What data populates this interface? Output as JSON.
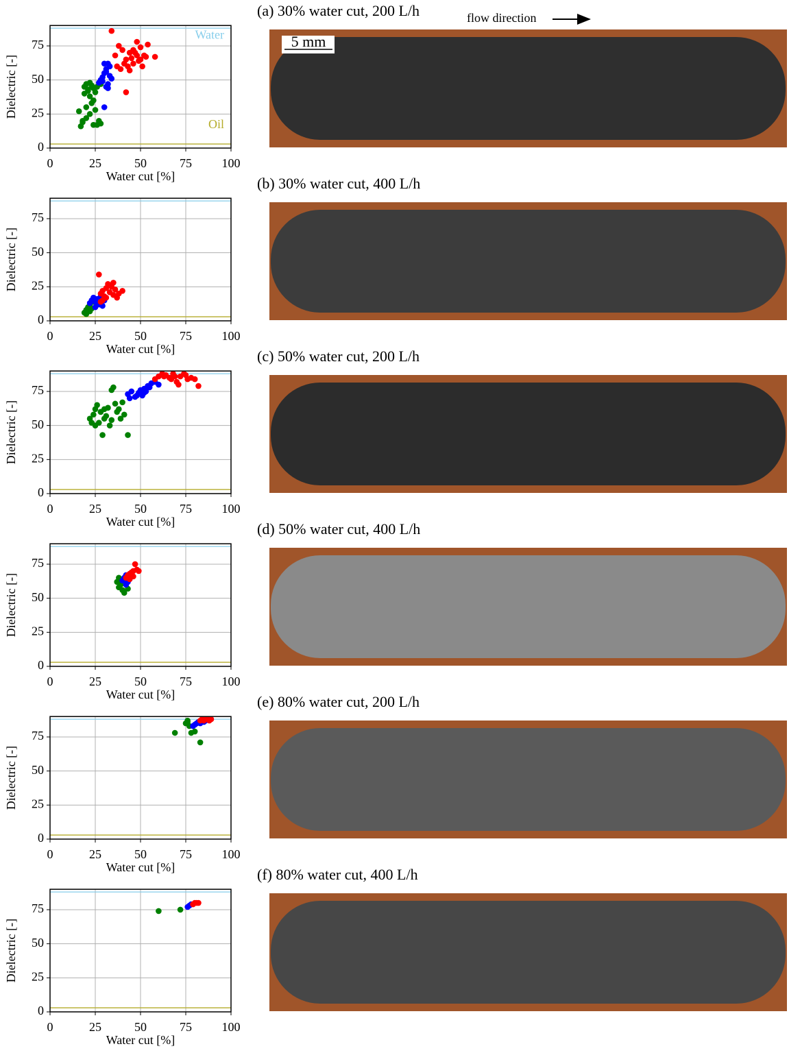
{
  "chart_data": [
    {
      "type": "scatter",
      "xlabel": "Water cut [%]",
      "ylabel": "Dielectric [-]",
      "xlim": [
        0,
        100
      ],
      "ylim": [
        0,
        90
      ],
      "xticks": [
        0,
        25,
        50,
        75,
        100
      ],
      "yticks": [
        0,
        25,
        50,
        75
      ],
      "grid": true,
      "reference_lines": [
        {
          "value": 88,
          "color": "#87ceeb",
          "label": "Water"
        },
        {
          "value": 3,
          "color": "#b5ac2a",
          "label": "Oil"
        }
      ],
      "series": [
        {
          "color": "#008000",
          "x": [
            16,
            17,
            18,
            19,
            20,
            21,
            22,
            23,
            24,
            25,
            26,
            27,
            28,
            20,
            22,
            24,
            19,
            21,
            23,
            25,
            18,
            22,
            26,
            28,
            20,
            24
          ],
          "values": [
            27,
            16,
            20,
            45,
            47,
            43,
            48,
            46,
            44,
            41,
            45,
            20,
            18,
            22,
            38,
            35,
            40,
            42,
            33,
            28,
            19,
            25,
            17,
            47,
            30,
            17
          ]
        },
        {
          "color": "#0000ff",
          "x": [
            27,
            28,
            29,
            30,
            31,
            32,
            33,
            30,
            31,
            32,
            33,
            29,
            31,
            34,
            32,
            30
          ],
          "values": [
            48,
            50,
            52,
            55,
            58,
            62,
            60,
            30,
            45,
            47,
            53,
            49,
            56,
            51,
            44,
            62
          ]
        },
        {
          "color": "#ff0000",
          "x": [
            34,
            36,
            38,
            40,
            42,
            44,
            46,
            48,
            50,
            52,
            54,
            58,
            39,
            41,
            43,
            45,
            47,
            49,
            51,
            42,
            44,
            46,
            48,
            50,
            37,
            53
          ],
          "values": [
            86,
            68,
            75,
            72,
            65,
            70,
            62,
            78,
            74,
            68,
            76,
            67,
            58,
            62,
            60,
            66,
            70,
            64,
            60,
            41,
            57,
            72,
            68,
            65,
            60,
            67
          ]
        }
      ]
    },
    {
      "type": "scatter",
      "xlabel": "Water cut [%]",
      "ylabel": "Dielectric [-]",
      "xlim": [
        0,
        100
      ],
      "ylim": [
        0,
        90
      ],
      "xticks": [
        0,
        25,
        50,
        75,
        100
      ],
      "yticks": [
        0,
        25,
        50,
        75
      ],
      "grid": true,
      "reference_lines": [
        {
          "value": 88,
          "color": "#87ceeb"
        },
        {
          "value": 3,
          "color": "#b5ac2a"
        }
      ],
      "series": [
        {
          "color": "#008000",
          "x": [
            19,
            20,
            21,
            22,
            23,
            24,
            20,
            22
          ],
          "values": [
            6,
            8,
            10,
            12,
            9,
            14,
            5,
            7
          ]
        },
        {
          "color": "#0000ff",
          "x": [
            22,
            23,
            24,
            25,
            26,
            27,
            28,
            29,
            30,
            25
          ],
          "values": [
            13,
            15,
            17,
            14,
            16,
            12,
            18,
            11,
            15,
            10
          ]
        },
        {
          "color": "#ff0000",
          "x": [
            27,
            28,
            29,
            30,
            31,
            32,
            33,
            34,
            35,
            36,
            38,
            40,
            29,
            31,
            33,
            35,
            37,
            28
          ],
          "values": [
            34,
            20,
            22,
            18,
            24,
            27,
            21,
            25,
            19,
            23,
            20,
            22,
            15,
            17,
            26,
            28,
            17,
            14
          ]
        }
      ]
    },
    {
      "type": "scatter",
      "xlabel": "Water cut [%]",
      "ylabel": "Dielectric [-]",
      "xlim": [
        0,
        100
      ],
      "ylim": [
        0,
        90
      ],
      "xticks": [
        0,
        25,
        50,
        75,
        100
      ],
      "yticks": [
        0,
        25,
        50,
        75
      ],
      "grid": true,
      "reference_lines": [
        {
          "value": 88,
          "color": "#87ceeb"
        },
        {
          "value": 3,
          "color": "#b5ac2a"
        }
      ],
      "series": [
        {
          "color": "#008000",
          "x": [
            22,
            24,
            25,
            26,
            27,
            28,
            29,
            30,
            31,
            32,
            33,
            34,
            35,
            36,
            37,
            38,
            39,
            40,
            41,
            43,
            25,
            30,
            34,
            23,
            28
          ],
          "values": [
            55,
            58,
            62,
            65,
            52,
            60,
            43,
            55,
            57,
            63,
            50,
            76,
            78,
            66,
            60,
            62,
            55,
            67,
            58,
            43,
            50,
            62,
            54,
            52,
            60
          ]
        },
        {
          "color": "#0000ff",
          "x": [
            43,
            45,
            47,
            49,
            50,
            51,
            52,
            53,
            54,
            55,
            56,
            58,
            60,
            48,
            52,
            44
          ],
          "values": [
            73,
            75,
            71,
            74,
            76,
            72,
            77,
            75,
            79,
            78,
            81,
            82,
            80,
            72,
            74,
            70
          ]
        },
        {
          "color": "#ff0000",
          "x": [
            58,
            60,
            62,
            64,
            66,
            68,
            70,
            72,
            74,
            76,
            78,
            80,
            82,
            63,
            67,
            71,
            75,
            69
          ],
          "values": [
            84,
            86,
            88,
            87,
            85,
            88,
            82,
            86,
            88,
            84,
            85,
            84,
            79,
            86,
            84,
            80,
            87,
            86
          ]
        }
      ]
    },
    {
      "type": "scatter",
      "xlabel": "Water cut [%]",
      "ylabel": "Dielectric [-]",
      "xlim": [
        0,
        100
      ],
      "ylim": [
        0,
        90
      ],
      "xticks": [
        0,
        25,
        50,
        75,
        100
      ],
      "yticks": [
        0,
        25,
        50,
        75
      ],
      "grid": true,
      "reference_lines": [
        {
          "value": 88,
          "color": "#87ceeb"
        },
        {
          "value": 3,
          "color": "#b5ac2a"
        }
      ],
      "series": [
        {
          "color": "#008000",
          "x": [
            37,
            38,
            39,
            40,
            41,
            42,
            43,
            38,
            40,
            42
          ],
          "values": [
            62,
            58,
            60,
            56,
            54,
            60,
            57,
            65,
            63,
            66
          ]
        },
        {
          "color": "#0000ff",
          "x": [
            40,
            41,
            42,
            43,
            44,
            45,
            42
          ],
          "values": [
            63,
            65,
            67,
            62,
            64,
            66,
            60
          ]
        },
        {
          "color": "#ff0000",
          "x": [
            42,
            43,
            44,
            45,
            46,
            47,
            48,
            49,
            46,
            44
          ],
          "values": [
            65,
            67,
            68,
            69,
            70,
            75,
            71,
            70,
            66,
            64
          ]
        }
      ]
    },
    {
      "type": "scatter",
      "xlabel": "Water cut [%]",
      "ylabel": "Dielectric [-]",
      "xlim": [
        0,
        100
      ],
      "ylim": [
        0,
        90
      ],
      "xticks": [
        0,
        25,
        50,
        75,
        100
      ],
      "yticks": [
        0,
        25,
        50,
        75
      ],
      "grid": true,
      "reference_lines": [
        {
          "value": 88,
          "color": "#87ceeb"
        },
        {
          "value": 3,
          "color": "#b5ac2a"
        }
      ],
      "series": [
        {
          "color": "#008000",
          "x": [
            69,
            75,
            76,
            77,
            78,
            83,
            76,
            80
          ],
          "values": [
            78,
            85,
            87,
            83,
            78,
            71,
            86,
            79
          ]
        },
        {
          "color": "#0000ff",
          "x": [
            79,
            80,
            81,
            82,
            83,
            84,
            85,
            86
          ],
          "values": [
            83,
            84,
            85,
            86,
            85,
            87,
            86,
            87
          ]
        },
        {
          "color": "#ff0000",
          "x": [
            83,
            84,
            85,
            86,
            87,
            88,
            89
          ],
          "values": [
            87,
            88,
            87,
            88,
            88,
            87,
            88
          ]
        }
      ]
    },
    {
      "type": "scatter",
      "xlabel": "Water cut [%]",
      "ylabel": "Dielectric [-]",
      "xlim": [
        0,
        100
      ],
      "ylim": [
        0,
        90
      ],
      "xticks": [
        0,
        25,
        50,
        75,
        100
      ],
      "yticks": [
        0,
        25,
        50,
        75
      ],
      "grid": true,
      "reference_lines": [
        {
          "value": 88,
          "color": "#87ceeb"
        },
        {
          "value": 3,
          "color": "#b5ac2a"
        }
      ],
      "series": [
        {
          "color": "#008000",
          "x": [
            60,
            72
          ],
          "values": [
            74,
            75
          ]
        },
        {
          "color": "#0000ff",
          "x": [
            76,
            77,
            78
          ],
          "values": [
            77,
            78,
            79
          ]
        },
        {
          "color": "#ff0000",
          "x": [
            79,
            80,
            81,
            82
          ],
          "values": [
            79,
            80,
            80,
            80
          ]
        }
      ]
    }
  ],
  "images": [
    {
      "caption": "(a) 30% water cut, 200 L/h",
      "shade": "#2f2f2f"
    },
    {
      "caption": "(b) 30% water cut, 400 L/h",
      "shade": "#3c3c3c"
    },
    {
      "caption": "(c) 50% water cut, 200 L/h",
      "shade": "#2c2c2c"
    },
    {
      "caption": "(d) 50% water cut, 400 L/h",
      "shade": "#8a8a8a"
    },
    {
      "caption": "(e) 80% water cut, 200 L/h",
      "shade": "#5a5a5a"
    },
    {
      "caption": "(f) 80% water cut, 400 L/h",
      "shade": "#474747"
    }
  ],
  "flow_direction": "flow direction",
  "scale_bar": "5 mm"
}
